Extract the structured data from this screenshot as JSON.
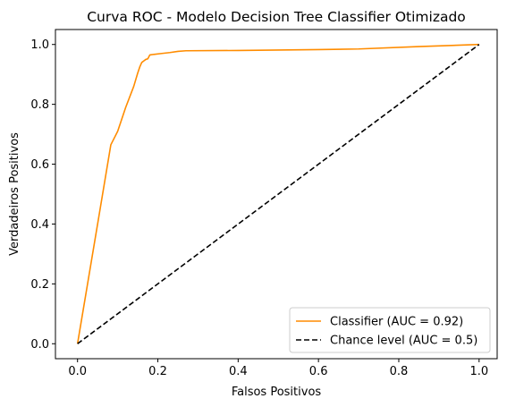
{
  "chart_data": {
    "type": "line",
    "title": "Curva ROC - Modelo Decision Tree Classifier Otimizado",
    "xlabel": "Falsos Positivos",
    "ylabel": "Verdadeiros Positivos",
    "xlim": [
      -0.055,
      1.045
    ],
    "ylim": [
      -0.05,
      1.05
    ],
    "xticks": [
      0.0,
      0.2,
      0.4,
      0.6,
      0.8,
      1.0
    ],
    "yticks": [
      0.0,
      0.2,
      0.4,
      0.6,
      0.8,
      1.0
    ],
    "xtick_labels": [
      "0.0",
      "0.2",
      "0.4",
      "0.6",
      "0.8",
      "1.0"
    ],
    "ytick_labels": [
      "0.0",
      "0.2",
      "0.4",
      "0.6",
      "0.8",
      "1.0"
    ],
    "grid": false,
    "legend_position": "lower-right",
    "series": [
      {
        "name": "Classifier (AUC = 0.92)",
        "color": "#ff8c00",
        "dash": "solid",
        "x": [
          0.0,
          0.02,
          0.05,
          0.083,
          0.1,
          0.12,
          0.14,
          0.15,
          0.155,
          0.16,
          0.165,
          0.17,
          0.175,
          0.18,
          0.19,
          0.21,
          0.23,
          0.25,
          0.27,
          0.4,
          0.6,
          0.7,
          0.85,
          1.0
        ],
        "y": [
          0.0,
          0.16,
          0.4,
          0.665,
          0.71,
          0.79,
          0.86,
          0.905,
          0.925,
          0.94,
          0.945,
          0.95,
          0.952,
          0.965,
          0.967,
          0.97,
          0.973,
          0.977,
          0.979,
          0.98,
          0.983,
          0.985,
          0.993,
          1.0
        ]
      },
      {
        "name": "Chance level (AUC = 0.5)",
        "color": "#000000",
        "dash": "dashed",
        "x": [
          0.0,
          1.0
        ],
        "y": [
          0.0,
          1.0
        ]
      }
    ]
  }
}
